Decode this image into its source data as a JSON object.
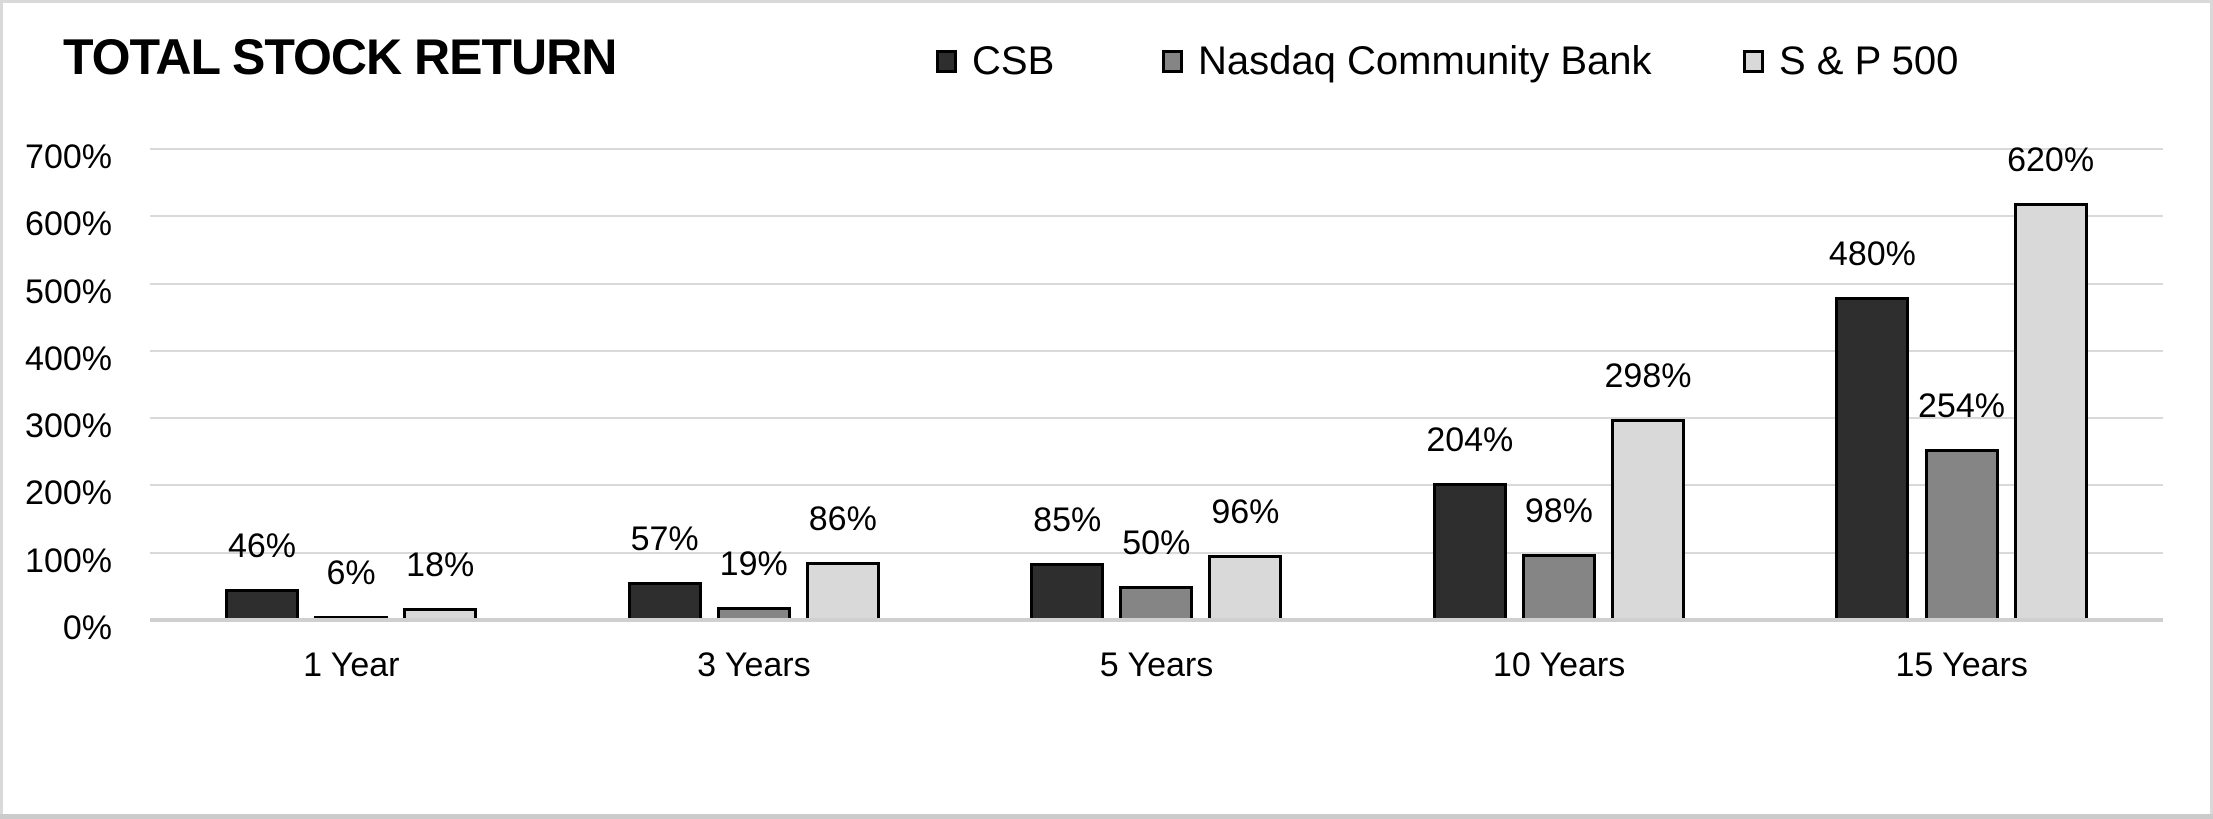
{
  "title": "TOTAL STOCK RETURN",
  "chart_data": {
    "type": "bar",
    "title": "TOTAL STOCK RETURN",
    "categories": [
      "1 Year",
      "3 Years",
      "5 Years",
      "10 Years",
      "15 Years"
    ],
    "series": [
      {
        "name": "CSB",
        "color": "#2e2e2e",
        "values": [
          46,
          57,
          85,
          204,
          480
        ]
      },
      {
        "name": "Nasdaq Community Bank",
        "color": "#858585",
        "values": [
          6,
          19,
          50,
          98,
          254
        ]
      },
      {
        "name": "S & P 500",
        "color": "#d9d9d9",
        "values": [
          18,
          86,
          96,
          298,
          620
        ]
      }
    ],
    "value_suffix": "%",
    "y_ticks": [
      "0%",
      "100%",
      "200%",
      "300%",
      "400%",
      "500%",
      "600%",
      "700%"
    ],
    "ylim": [
      0,
      700
    ],
    "grid": "horizontal",
    "legend_position": "top",
    "colors": {
      "bar_border": "#000000",
      "gridline": "#d9d9d9",
      "axis_line": "#cfcfcf",
      "text": "#000000",
      "frame_border": "#d9d9d9"
    }
  }
}
